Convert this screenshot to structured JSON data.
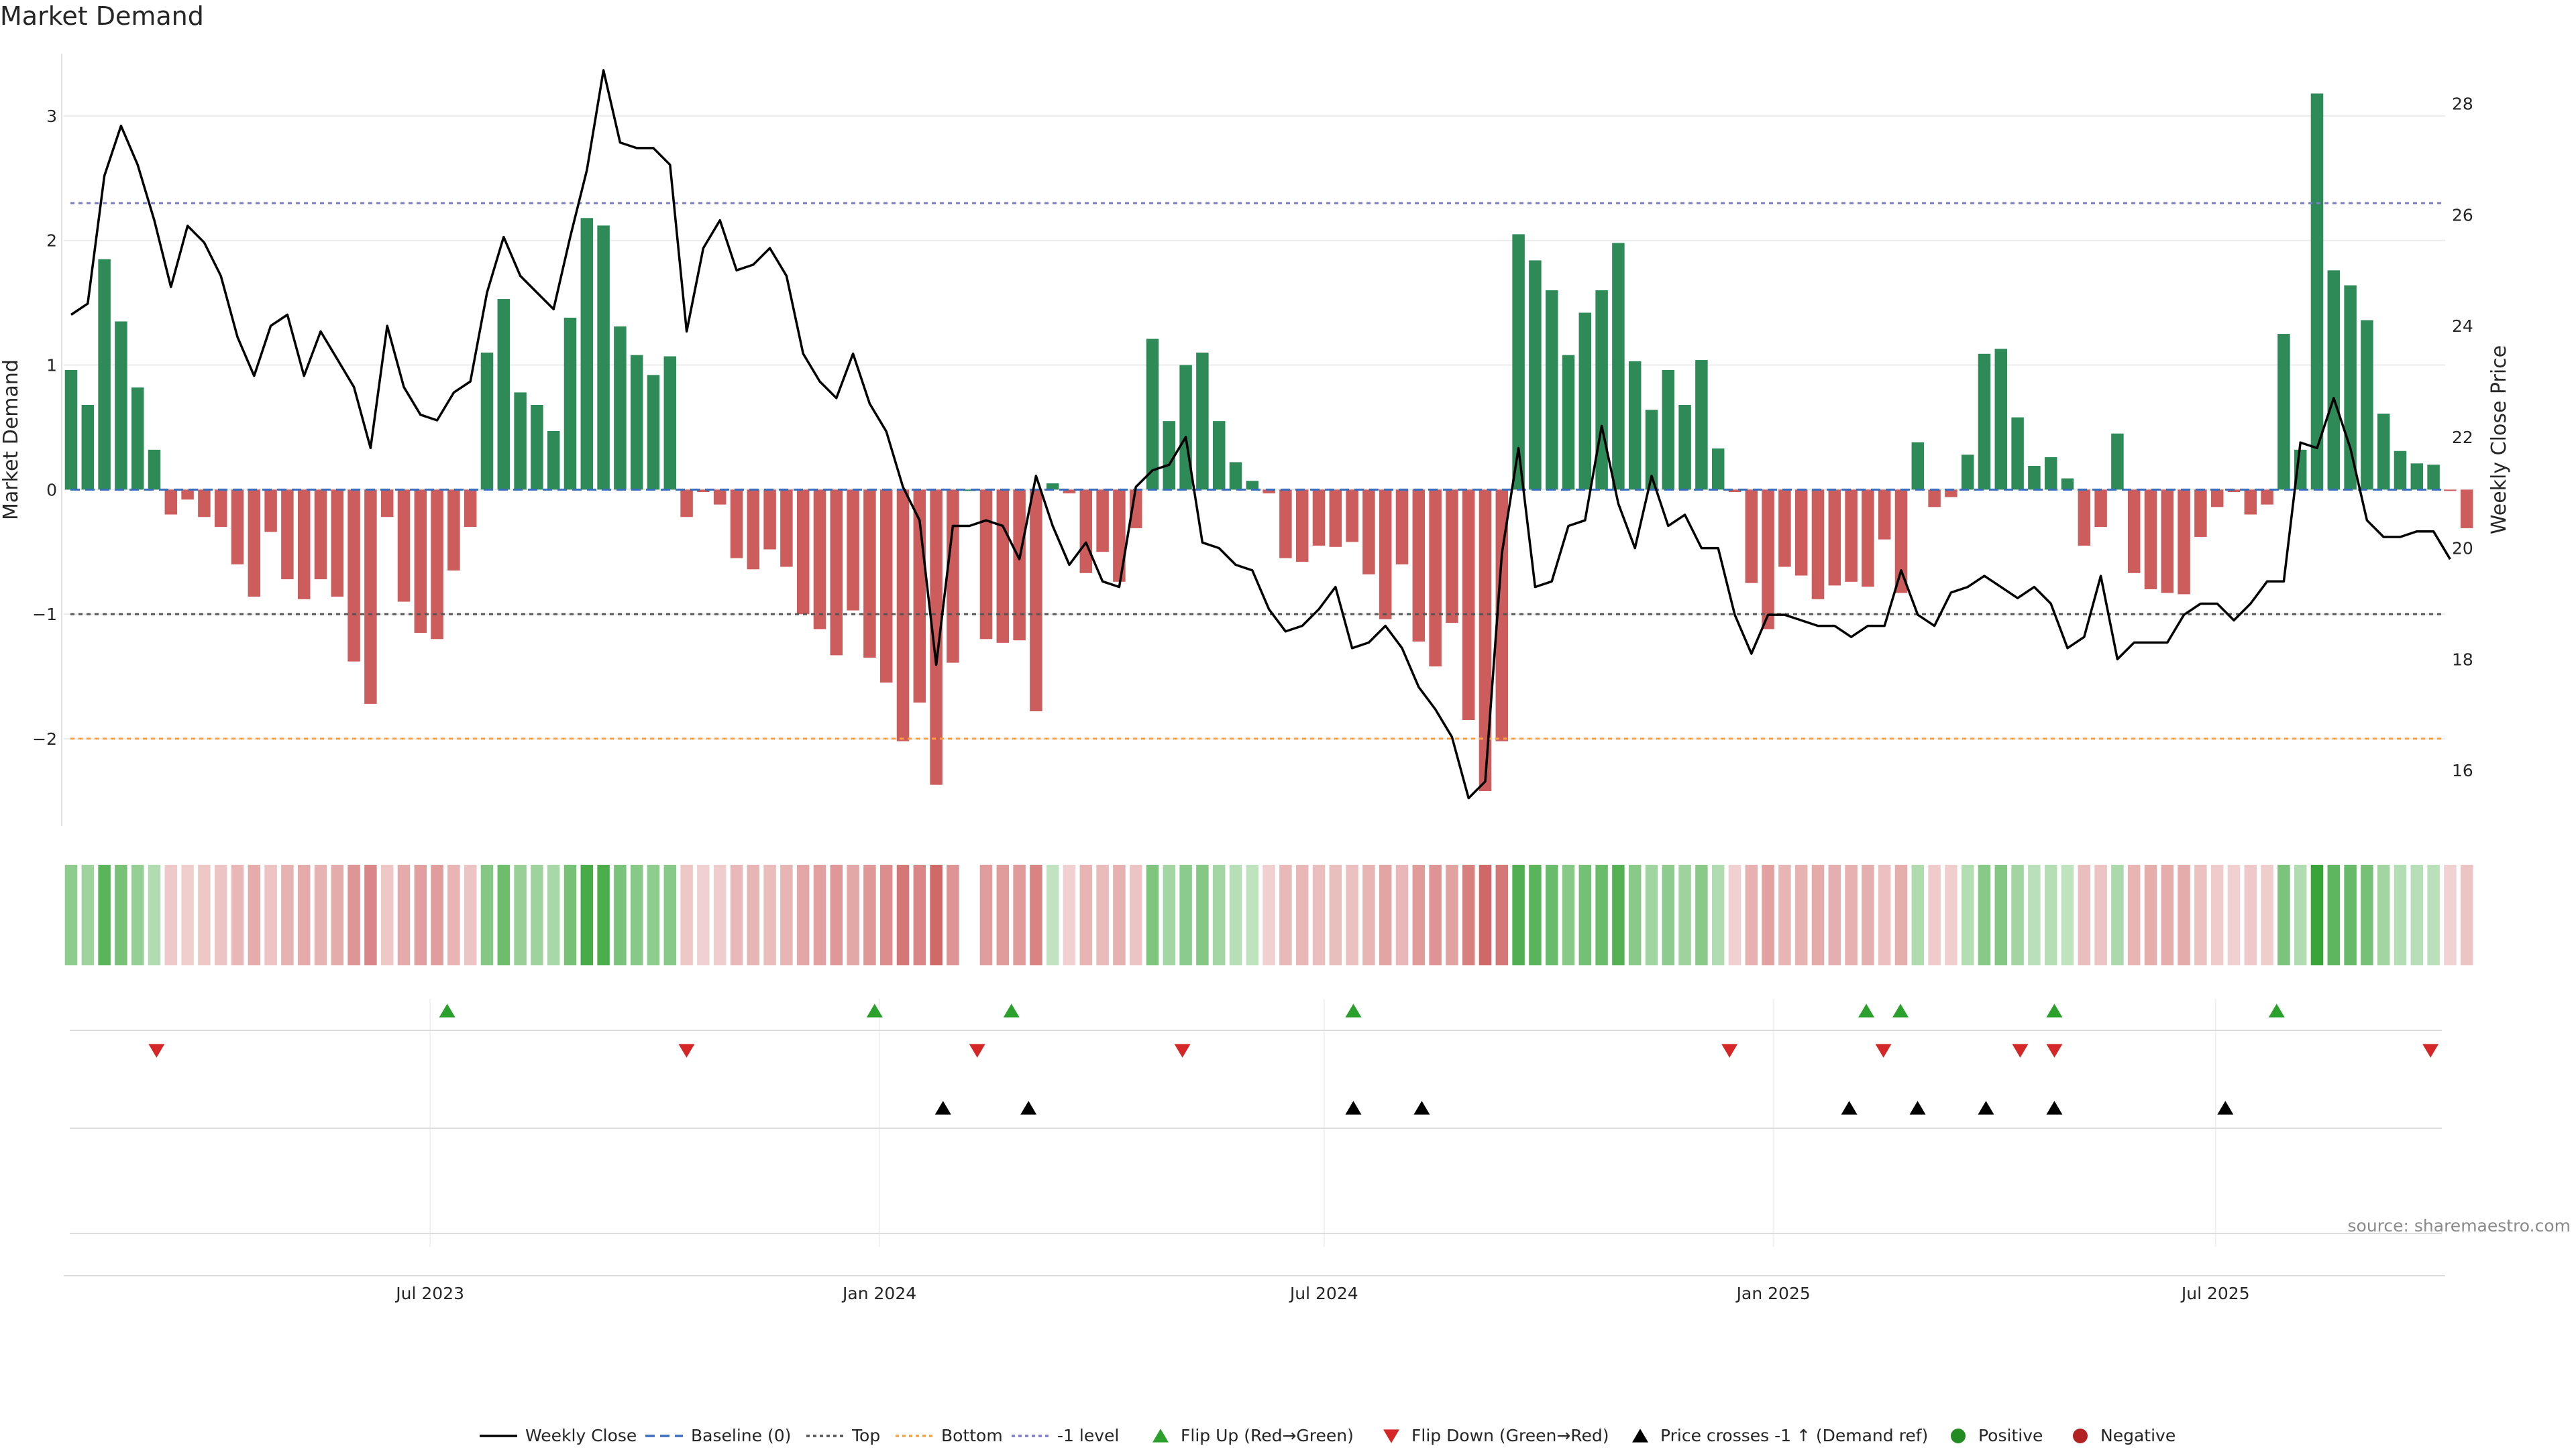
{
  "title": "Market Demand",
  "source": "source: sharemaestro.com",
  "chart_data": {
    "type": "bar",
    "title": "Market Demand",
    "ylabel": "Market Demand",
    "y2label": "Weekly Close Price",
    "ylim": [
      -2.7,
      3.5
    ],
    "y2lim": [
      15.0,
      28.9
    ],
    "yticks": [
      3,
      2,
      1,
      0,
      -1,
      -2
    ],
    "ytick_labels": [
      "3",
      "2",
      "1",
      "0",
      "−1",
      "−2"
    ],
    "y2ticks": [
      28,
      26,
      24,
      22,
      20,
      18,
      16
    ],
    "y2tick_labels": [
      "28",
      "26",
      "24",
      "22",
      "20",
      "18",
      "16"
    ],
    "reference_lines": {
      "top": 2.3,
      "bottom": -2.0,
      "minus_one": -1.0,
      "baseline": 0
    },
    "x_start": "2023-02-01",
    "x_end": "2025-10-03",
    "xticks": [
      "2023-07-01",
      "2024-01-01",
      "2024-07-01",
      "2025-01-01",
      "2025-07-01"
    ],
    "xtick_labels": [
      "Jul 2023",
      "Jan 2024",
      "Jul 2024",
      "Jan 2025",
      "Jul 2025"
    ],
    "demand": [
      0.96,
      0.68,
      1.85,
      1.35,
      0.82,
      0.32,
      -0.2,
      -0.08,
      -0.22,
      -0.3,
      -0.6,
      -0.86,
      -0.34,
      -0.72,
      -0.88,
      -0.72,
      -0.86,
      -1.38,
      -1.72,
      -0.22,
      -0.9,
      -1.15,
      -1.2,
      -0.65,
      -0.3,
      1.1,
      1.53,
      0.78,
      0.68,
      0.47,
      1.38,
      2.18,
      2.12,
      1.31,
      1.08,
      0.92,
      1.07,
      -0.22,
      -0.02,
      -0.12,
      -0.55,
      -0.64,
      -0.48,
      -0.62,
      -1.0,
      -1.12,
      -1.33,
      -0.97,
      -1.35,
      -1.55,
      -2.02,
      -1.71,
      -2.37,
      -1.39,
      0,
      -1.2,
      -1.23,
      -1.21,
      -1.78,
      0.05,
      -0.03,
      -0.67,
      -0.5,
      -0.74,
      -0.31,
      1.21,
      0.55,
      1.0,
      1.1,
      0.55,
      0.22,
      0.07,
      -0.03,
      -0.55,
      -0.58,
      -0.45,
      -0.46,
      -0.42,
      -0.68,
      -1.04,
      -0.6,
      -1.22,
      -1.42,
      -1.07,
      -1.85,
      -2.42,
      -2.02,
      2.05,
      1.84,
      1.6,
      1.08,
      1.42,
      1.6,
      1.98,
      1.03,
      0.64,
      0.96,
      0.68,
      1.04,
      0.33,
      -0.02,
      -0.75,
      -1.12,
      -0.62,
      -0.69,
      -0.88,
      -0.77,
      -0.74,
      -0.78,
      -0.4,
      -0.83,
      0.38,
      -0.14,
      -0.06,
      0.28,
      1.09,
      1.13,
      0.58,
      0.19,
      0.26,
      0.09,
      -0.45,
      -0.3,
      0.45,
      -0.67,
      -0.8,
      -0.83,
      -0.84,
      -0.38,
      -0.14,
      -0.02,
      -0.2,
      -0.12,
      1.25,
      0.32,
      3.18,
      1.76,
      1.64,
      1.36,
      0.61,
      0.31,
      0.21,
      0.2,
      -0.01,
      -0.31
    ],
    "weekly_close": [
      24.2,
      24.4,
      26.7,
      27.6,
      26.9,
      25.9,
      24.7,
      25.8,
      25.5,
      24.9,
      23.8,
      23.1,
      24.0,
      24.2,
      23.1,
      23.9,
      23.4,
      22.9,
      21.8,
      24.0,
      22.9,
      22.4,
      22.3,
      22.8,
      23.0,
      24.6,
      25.6,
      24.9,
      24.6,
      24.3,
      25.6,
      26.8,
      28.6,
      27.3,
      27.2,
      27.2,
      26.9,
      23.9,
      25.4,
      25.9,
      25.0,
      25.1,
      25.4,
      24.9,
      23.5,
      23.0,
      22.7,
      23.5,
      22.6,
      22.1,
      21.1,
      20.5,
      17.9,
      20.4,
      20.4,
      20.5,
      20.4,
      19.8,
      21.3,
      20.4,
      19.7,
      20.1,
      19.4,
      19.3,
      21.1,
      21.4,
      21.5,
      22.0,
      20.1,
      20.0,
      19.7,
      19.6,
      18.9,
      18.5,
      18.6,
      18.9,
      19.3,
      18.2,
      18.3,
      18.6,
      18.2,
      17.5,
      17.1,
      16.6,
      15.5,
      15.8,
      19.9,
      21.8,
      19.3,
      19.4,
      20.4,
      20.5,
      22.2,
      20.8,
      20.0,
      21.3,
      20.4,
      20.6,
      20.0,
      20.0,
      18.8,
      18.1,
      18.8,
      18.8,
      18.7,
      18.6,
      18.6,
      18.4,
      18.6,
      18.6,
      19.6,
      18.8,
      18.6,
      19.2,
      19.3,
      19.5,
      19.3,
      19.1,
      19.3,
      19.0,
      18.2,
      18.4,
      19.5,
      18.0,
      18.3,
      18.3,
      18.3,
      18.8,
      19.0,
      19.0,
      18.7,
      19.0,
      19.4,
      19.4,
      21.9,
      21.8,
      22.7,
      21.8,
      20.5,
      20.2,
      20.2,
      20.3,
      20.3,
      19.8
    ],
    "flip_up": [
      "2023-07-08",
      "2023-12-30",
      "2024-02-24",
      "2024-07-13",
      "2025-02-08",
      "2025-02-22",
      "2025-04-26",
      "2025-07-26"
    ],
    "flip_down": [
      "2023-03-11",
      "2023-10-14",
      "2024-02-10",
      "2024-05-04",
      "2024-12-14",
      "2025-02-15",
      "2025-04-12",
      "2025-04-26",
      "2025-09-27"
    ],
    "price_crosses_up": [
      "2024-01-27",
      "2024-03-02",
      "2024-07-13",
      "2024-08-10",
      "2025-02-01",
      "2025-03-01",
      "2025-03-29",
      "2025-04-26",
      "2025-07-05"
    ],
    "legend": [
      "Weekly Close",
      "Baseline (0)",
      "Top",
      "Bottom",
      "-1 level",
      "Flip Up (Red→Green)",
      "Flip Down (Green→Red)",
      "Price crosses -1 ↑ (Demand ref)",
      "Positive",
      "Negative"
    ]
  },
  "colors": {
    "positive": "#2e8b57",
    "negative": "#cd5c5c",
    "flip_up": "#2ca02c",
    "flip_down": "#d62728",
    "price": "#000000",
    "top_line": "#7b7bc8",
    "bottom_line": "#ffa040",
    "minus_one_line": "#555555",
    "baseline": "#3a6fbf",
    "legend_positive": "#228b22",
    "legend_negative": "#b22222"
  }
}
